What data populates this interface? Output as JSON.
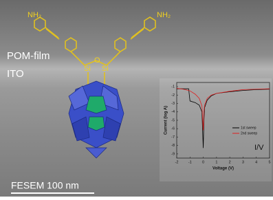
{
  "header": {
    "film_label": "POM-film",
    "substrate_label": "ITO",
    "scale_label": "FESEM 100 nm"
  },
  "molecule": {
    "left_amine": "NH₂",
    "right_amine": "NH₂",
    "si_left": "Si",
    "oxygen": "O",
    "si_right": "Si"
  },
  "chart_data": {
    "type": "line",
    "title": "I/V",
    "x_label": "Voltage (V)",
    "y_label": "Current (log A)",
    "xlim": [
      -2,
      5
    ],
    "ylim": [
      -9.5,
      -0.5
    ],
    "xticks": [
      -2,
      -1,
      0,
      1,
      2,
      3,
      4,
      5
    ],
    "yticks": [
      -1,
      -2,
      -3,
      -4,
      -5,
      -6,
      -7,
      -8,
      -9
    ],
    "legend": "center-right",
    "series": [
      {
        "name": "1st sweep",
        "color": "#000000",
        "x": [
          -2,
          -1.5,
          -1.1,
          -1.05,
          -1,
          -0.6,
          -0.3,
          -0.1,
          0,
          0.05,
          0.1,
          0.3,
          0.6,
          1,
          2,
          3,
          4,
          5
        ],
        "values": [
          -1.25,
          -1.25,
          -1.25,
          -2,
          -2.7,
          -2.9,
          -3.2,
          -4,
          -8.3,
          -5,
          -3.5,
          -2.6,
          -2.1,
          -1.8,
          -1.6,
          -1.45,
          -1.35,
          -1.3
        ]
      },
      {
        "name": "2nd sweep",
        "color": "#e02020",
        "x": [
          -2,
          -1.5,
          -1,
          -0.6,
          -0.3,
          -0.1,
          0,
          0.05,
          0.1,
          0.3,
          0.6,
          1,
          2,
          3,
          4,
          5
        ],
        "values": [
          -1.2,
          -1.3,
          -1.5,
          -1.9,
          -2.4,
          -3.3,
          -6.2,
          -4,
          -3.2,
          -2.4,
          -2,
          -1.8,
          -1.55,
          -1.35,
          -1.3,
          -1.25
        ]
      }
    ]
  }
}
